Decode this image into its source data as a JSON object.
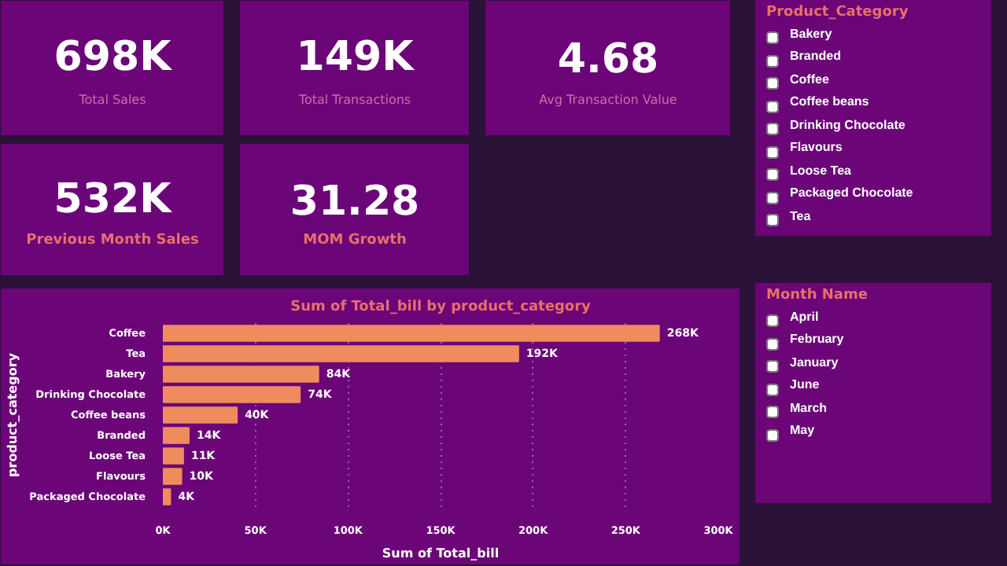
{
  "chart_data": [
    {
      "type": "other",
      "title": "Total Sales",
      "annotations": [
        "698K"
      ]
    },
    {
      "type": "other",
      "title": "Total Transactions",
      "annotations": [
        "149K"
      ]
    },
    {
      "type": "other",
      "title": "Avg Transaction Value",
      "annotations": [
        "4.68"
      ]
    },
    {
      "type": "other",
      "title": "Previous Month Sales",
      "annotations": [
        "532K"
      ]
    },
    {
      "type": "other",
      "title": "MOM Growth",
      "annotations": [
        "31.28"
      ]
    },
    {
      "type": "bar",
      "orientation": "horizontal",
      "title": "Sum of Total_bill by product_category",
      "xlabel": "Sum of Total_bill",
      "ylabel": "product_category",
      "categories": [
        "Coffee",
        "Tea",
        "Bakery",
        "Drinking Chocolate",
        "Coffee beans",
        "Branded",
        "Loose Tea",
        "Flavours",
        "Packaged Chocolate"
      ],
      "values": [
        268000,
        192000,
        84000,
        74000,
        40000,
        14000,
        11000,
        10000,
        4000
      ],
      "value_labels": [
        "268K",
        "192K",
        "84K",
        "74K",
        "40K",
        "14K",
        "11K",
        "10K",
        "4K"
      ],
      "color": "#ee8c5e",
      "xlim": [
        0,
        300000
      ],
      "xticks": [
        {
          "value": 0,
          "label": "0K"
        },
        {
          "value": 50000,
          "label": "50K"
        },
        {
          "value": 100000,
          "label": "100K"
        },
        {
          "value": 150000,
          "label": "150K"
        },
        {
          "value": 200000,
          "label": "200K"
        },
        {
          "value": 250000,
          "label": "250K"
        },
        {
          "value": 300000,
          "label": "300K"
        }
      ],
      "grid": "x"
    },
    {
      "type": "other",
      "title": "Product_Category",
      "annotations": [
        "Bakery",
        "Branded",
        "Coffee",
        "Coffee beans",
        "Drinking Chocolate",
        "Flavours",
        "Loose Tea",
        "Packaged Chocolate",
        "Tea"
      ]
    },
    {
      "type": "other",
      "title": "Month Name",
      "annotations": [
        "April",
        "February",
        "January",
        "June",
        "March",
        "May"
      ]
    }
  ]
}
